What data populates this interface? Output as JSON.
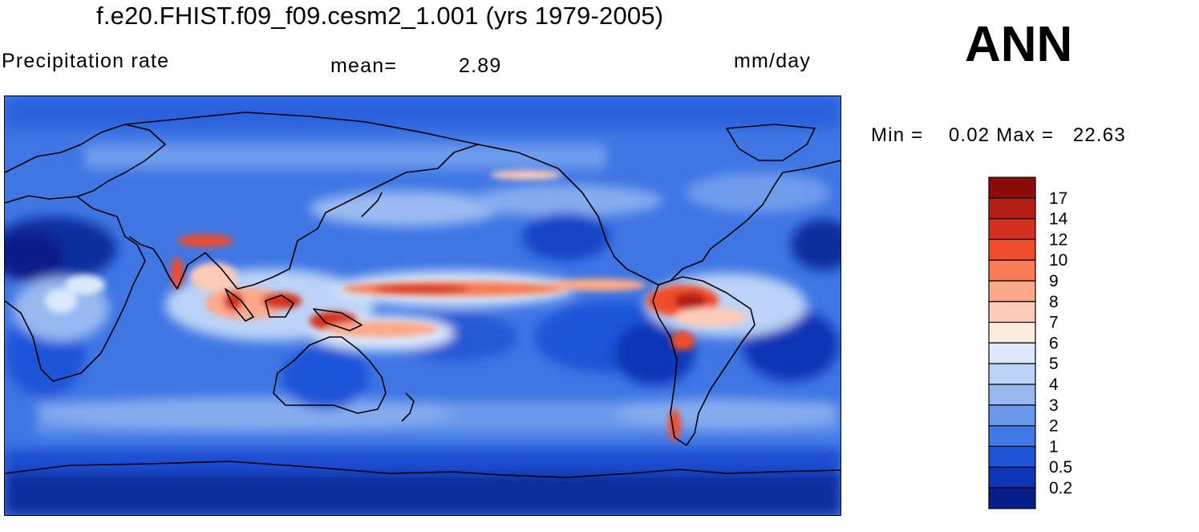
{
  "header": {
    "title": "f.e20.FHIST.f09_f09.cesm2_1.001 (yrs 1979-2005)",
    "variable": "Precipitation rate",
    "mean_label": "mean=",
    "mean_value": "2.89",
    "units": "mm/day",
    "season": "ANN",
    "minmax": "Min =    0.02 Max =   22.63"
  },
  "map": {
    "projection": "cylindrical equidistant, Pacific-centered",
    "land_outline_color": "#000000"
  },
  "colorbar": {
    "levels": [
      "17",
      "14",
      "12",
      "10",
      "9",
      "8",
      "7",
      "6",
      "5",
      "4",
      "3",
      "2",
      "1",
      "0.5",
      "0.2"
    ],
    "colors": [
      "#8c0c0c",
      "#b41e16",
      "#d4301f",
      "#f04e2c",
      "#f87c55",
      "#fca98a",
      "#fdcbb8",
      "#fdebe0",
      "#dbe9fb",
      "#bcd3f7",
      "#97b8f0",
      "#6a98ea",
      "#4078e5",
      "#1e55d8",
      "#0e35b8",
      "#081e8a"
    ]
  },
  "colors": {
    "background": "#ffffff",
    "ocean_base": "#4078e5"
  }
}
